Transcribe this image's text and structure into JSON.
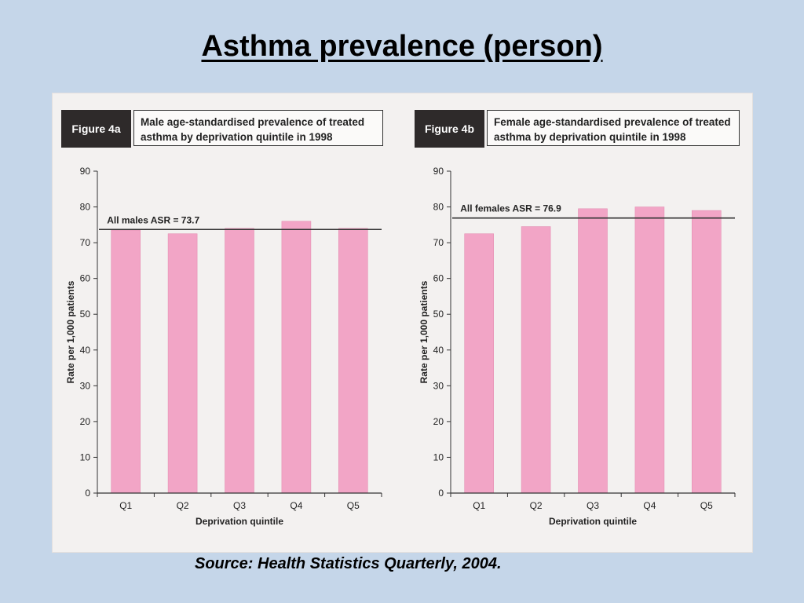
{
  "slide": {
    "title": "Asthma prevalence (person)",
    "source": "Source: Health Statistics Quarterly, 2004."
  },
  "colors": {
    "background": "#c5d6e9",
    "bar": "#f2a5c6",
    "bar_edge": "#e58fb3"
  },
  "chart_data": [
    {
      "type": "bar",
      "figure_label": "Figure 4a",
      "title_line1": "Male age-standardised prevalence of treated",
      "title_line2": "asthma by deprivation quintile in 1998",
      "categories": [
        "Q1",
        "Q2",
        "Q3",
        "Q4",
        "Q5"
      ],
      "values": [
        73.5,
        72.5,
        74.0,
        76.0,
        74.0
      ],
      "xlabel": "Deprivation quintile",
      "ylabel": "Rate per 1,000 patients",
      "ylim": [
        0,
        90
      ],
      "yticks": [
        0,
        10,
        20,
        30,
        40,
        50,
        60,
        70,
        80,
        90
      ],
      "reference_line": {
        "value": 73.7,
        "label": "All males ASR = 73.7"
      },
      "grid": false
    },
    {
      "type": "bar",
      "figure_label": "Figure 4b",
      "title_line1": "Female age-standardised prevalence of treated",
      "title_line2": "asthma by deprivation quintile in 1998",
      "categories": [
        "Q1",
        "Q2",
        "Q3",
        "Q4",
        "Q5"
      ],
      "values": [
        72.5,
        74.5,
        79.5,
        80.0,
        79.0
      ],
      "xlabel": "Deprivation quintile",
      "ylabel": "Rate per 1,000 patients",
      "ylim": [
        0,
        90
      ],
      "yticks": [
        0,
        10,
        20,
        30,
        40,
        50,
        60,
        70,
        80,
        90
      ],
      "reference_line": {
        "value": 76.9,
        "label": "All females ASR = 76.9"
      },
      "grid": false
    }
  ]
}
